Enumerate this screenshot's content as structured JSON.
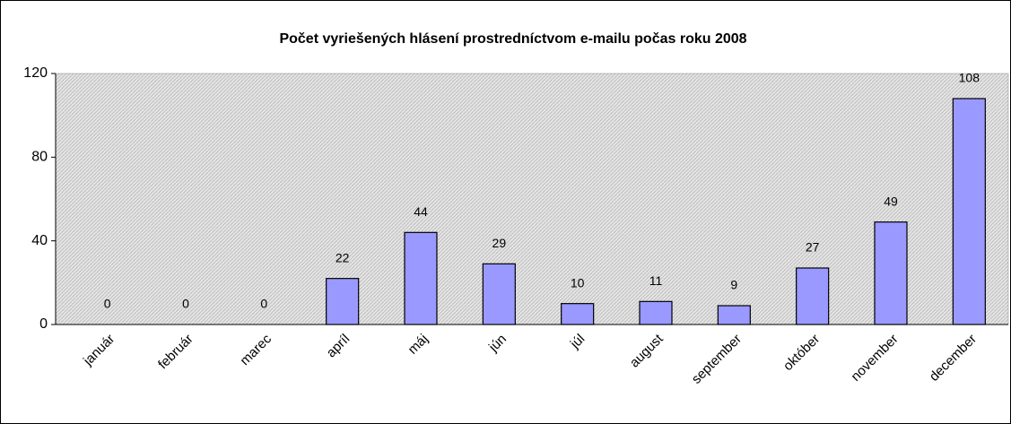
{
  "chart_data": {
    "type": "bar",
    "title": "Počet vyriešených hlásení prostredníctvom e-mailu počas roku 2008",
    "categories": [
      "január",
      "február",
      "marec",
      "apríl",
      "máj",
      "jún",
      "júl",
      "august",
      "september",
      "október",
      "november",
      "december"
    ],
    "values": [
      0,
      0,
      0,
      22,
      44,
      29,
      10,
      11,
      9,
      27,
      49,
      108
    ],
    "color": "#9999ff",
    "ylim": [
      0,
      120
    ],
    "yticks": [
      0,
      40,
      80,
      120
    ],
    "grid": false
  }
}
